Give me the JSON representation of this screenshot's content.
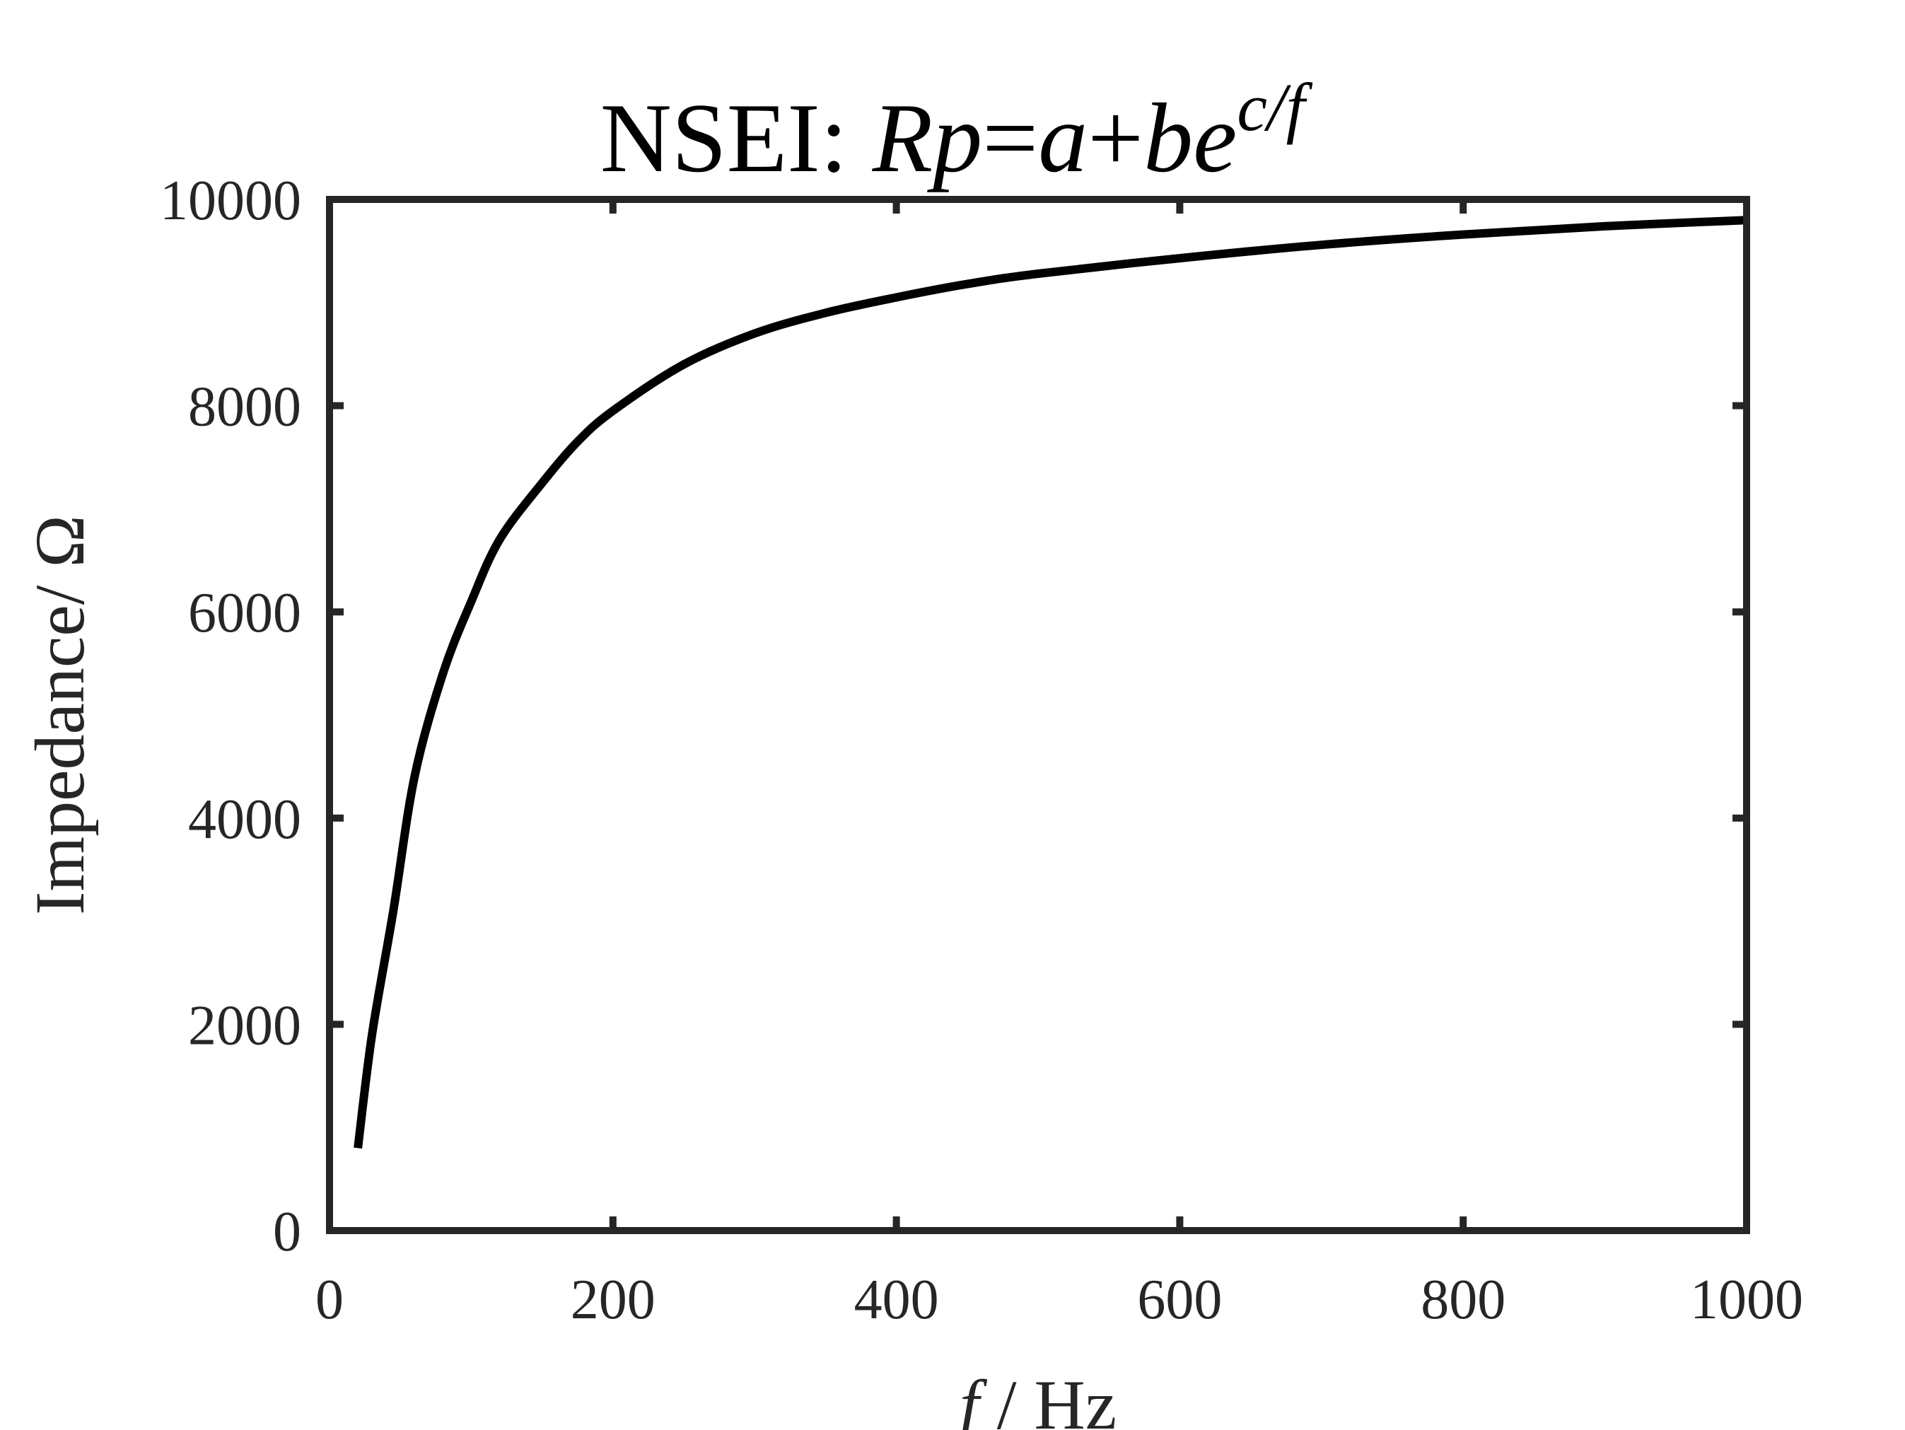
{
  "chart_data": {
    "type": "line",
    "title": {
      "prefix": "NSEI: ",
      "lhs": "Rp",
      "equals": "=",
      "var_a": "a",
      "plus": "+",
      "var_b": "b",
      "base": "e",
      "exponent": "c/f"
    },
    "xlabel": {
      "var": "f",
      "unit": " / Hz"
    },
    "ylabel": "Impedance/ Ω",
    "xlim": [
      0,
      1000
    ],
    "ylim": [
      0,
      10000
    ],
    "xticks": [
      0,
      200,
      400,
      600,
      800,
      1000
    ],
    "yticks": [
      0,
      2000,
      4000,
      6000,
      8000,
      10000
    ],
    "xtick_labels": [
      "0",
      "200",
      "400",
      "600",
      "800",
      "1000"
    ],
    "ytick_labels": [
      "0",
      "2000",
      "4000",
      "6000",
      "8000",
      "10000"
    ],
    "grid": false,
    "series": [
      {
        "color": "#000000",
        "x": [
          20,
          30,
          45,
          60,
          80,
          100,
          120,
          150,
          175,
          200,
          250,
          300,
          350,
          400,
          450,
          500,
          600,
          700,
          800,
          900,
          1000
        ],
        "y": [
          800,
          1900,
          3100,
          4400,
          5400,
          6100,
          6700,
          7250,
          7650,
          7950,
          8400,
          8700,
          8900,
          9050,
          9180,
          9280,
          9430,
          9560,
          9660,
          9740,
          9800
        ]
      }
    ]
  }
}
